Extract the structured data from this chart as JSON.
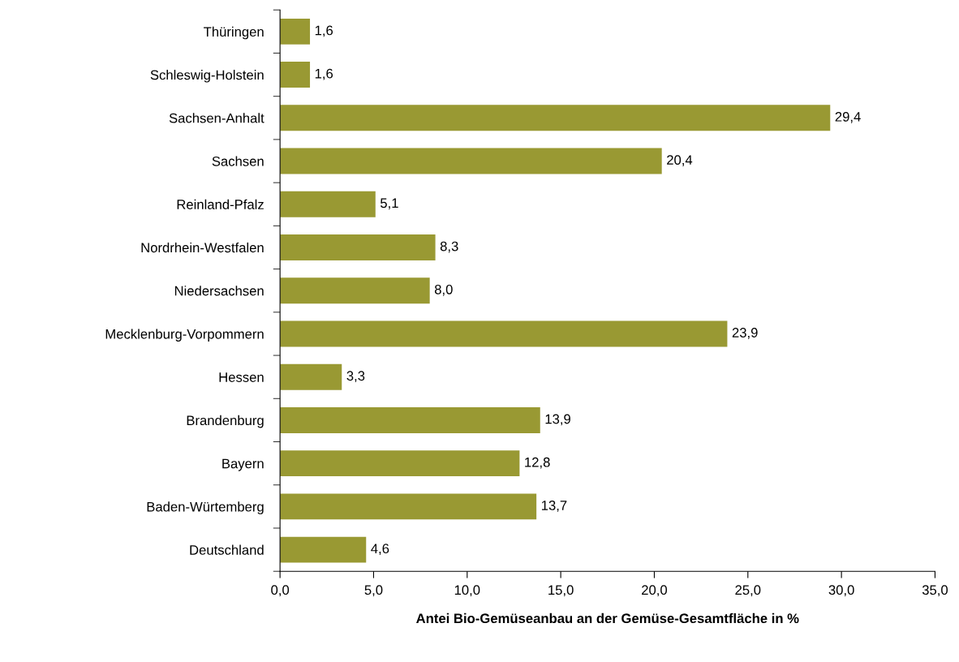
{
  "chart_data": {
    "type": "bar",
    "orientation": "horizontal",
    "xlabel": "Antei Bio-Gemüseanbau an der Gemüse-Gesamtfläche in %",
    "categories": [
      "Thüringen",
      "Schleswig-Holstein",
      "Sachsen-Anhalt",
      "Sachsen",
      "Reinland-Pfalz",
      "Nordrhein-Westfalen",
      "Niedersachsen",
      "Mecklenburg-Vorpommern",
      "Hessen",
      "Brandenburg",
      "Bayern",
      "Baden-Würtemberg",
      "Deutschland"
    ],
    "values": [
      1.6,
      1.6,
      29.4,
      20.4,
      5.1,
      8.3,
      8.0,
      23.9,
      3.3,
      13.9,
      12.8,
      13.7,
      4.6
    ],
    "value_labels": [
      "1,6",
      "1,6",
      "29,4",
      "20,4",
      "5,1",
      "8,3",
      "8,0",
      "23,9",
      "3,3",
      "13,9",
      "12,8",
      "13,7",
      "4,6"
    ],
    "color": "#999933",
    "xlim": [
      0,
      35
    ],
    "xticks": [
      {
        "value": 0,
        "label": "0,0"
      },
      {
        "value": 5,
        "label": "5,0"
      },
      {
        "value": 10,
        "label": "10,0"
      },
      {
        "value": 15,
        "label": "15,0"
      },
      {
        "value": 20,
        "label": "20,0"
      },
      {
        "value": 25,
        "label": "25,0"
      },
      {
        "value": 30,
        "label": "30,0"
      },
      {
        "value": 35,
        "label": "35,0"
      }
    ],
    "grid": false
  }
}
